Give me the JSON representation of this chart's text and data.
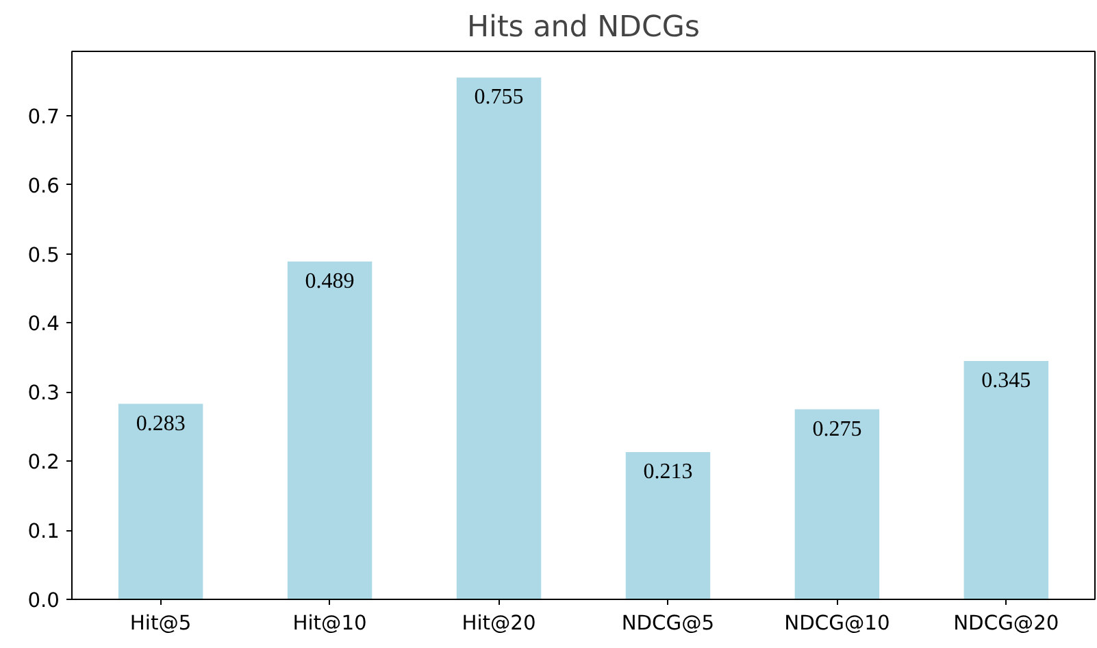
{
  "chart_data": {
    "type": "bar",
    "title": "Hits and NDCGs",
    "categories": [
      "Hit@5",
      "Hit@10",
      "Hit@20",
      "NDCG@5",
      "NDCG@10",
      "NDCG@20"
    ],
    "values": [
      0.283,
      0.489,
      0.755,
      0.213,
      0.275,
      0.345
    ],
    "color": "#add8e6",
    "ylim": [
      0,
      0.793
    ],
    "yticks": [
      {
        "value": 0,
        "label": "0.0"
      },
      {
        "value": 0.1,
        "label": "0.1"
      },
      {
        "value": 0.2,
        "label": "0.2"
      },
      {
        "value": 0.3,
        "label": "0.3"
      },
      {
        "value": 0.4,
        "label": "0.4"
      },
      {
        "value": 0.5,
        "label": "0.5"
      },
      {
        "value": 0.6,
        "label": "0.6"
      },
      {
        "value": 0.7,
        "label": "0.7"
      }
    ],
    "data_labels": true,
    "grid": false
  }
}
